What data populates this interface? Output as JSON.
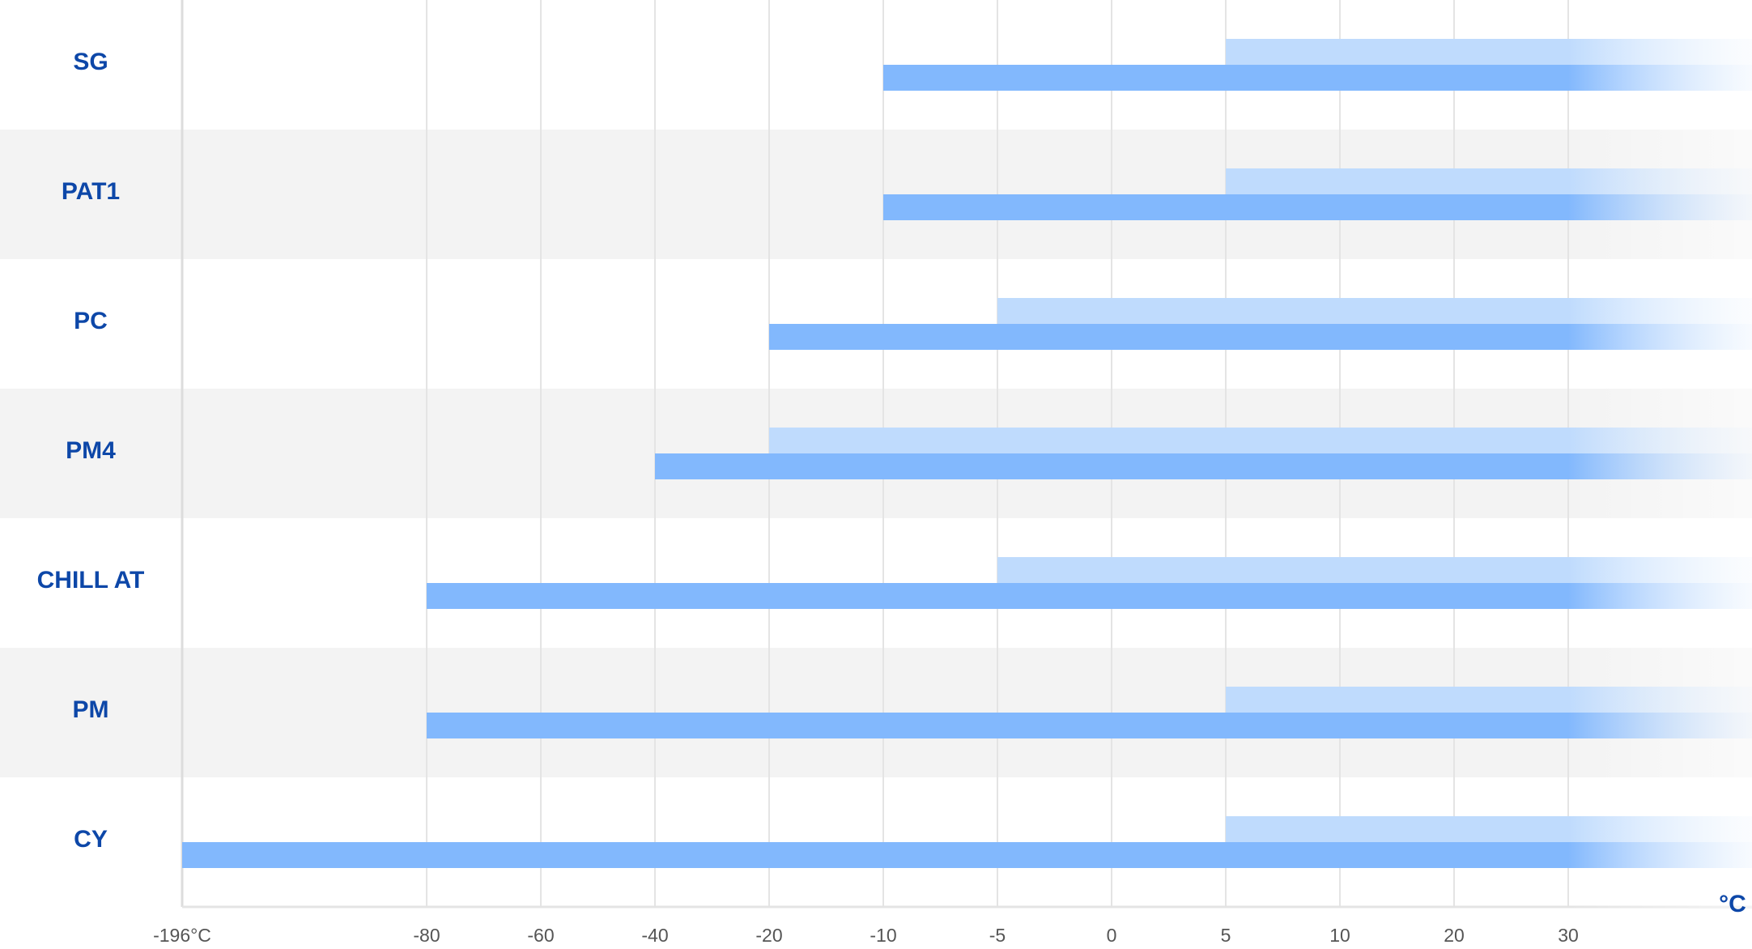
{
  "chart_data": {
    "type": "bar",
    "orientation": "horizontal",
    "categories": [
      "SG",
      "PAT1",
      "PC",
      "PM4",
      "CHILL AT",
      "PM",
      "CY"
    ],
    "series": [
      {
        "color": "#bfdbfd",
        "values": [
          5,
          5,
          -5,
          -20,
          -5,
          5,
          5
        ]
      },
      {
        "color": "#82b8fd",
        "values": [
          -10,
          -10,
          -20,
          -40,
          -80,
          -80,
          -196
        ]
      }
    ],
    "xticks": [
      {
        "value": -196,
        "label": "-196°C"
      },
      -80,
      -60,
      -40,
      -20,
      -10,
      -5,
      0,
      5,
      10,
      20,
      30
    ],
    "xlabel": "°C",
    "grid": true
  }
}
